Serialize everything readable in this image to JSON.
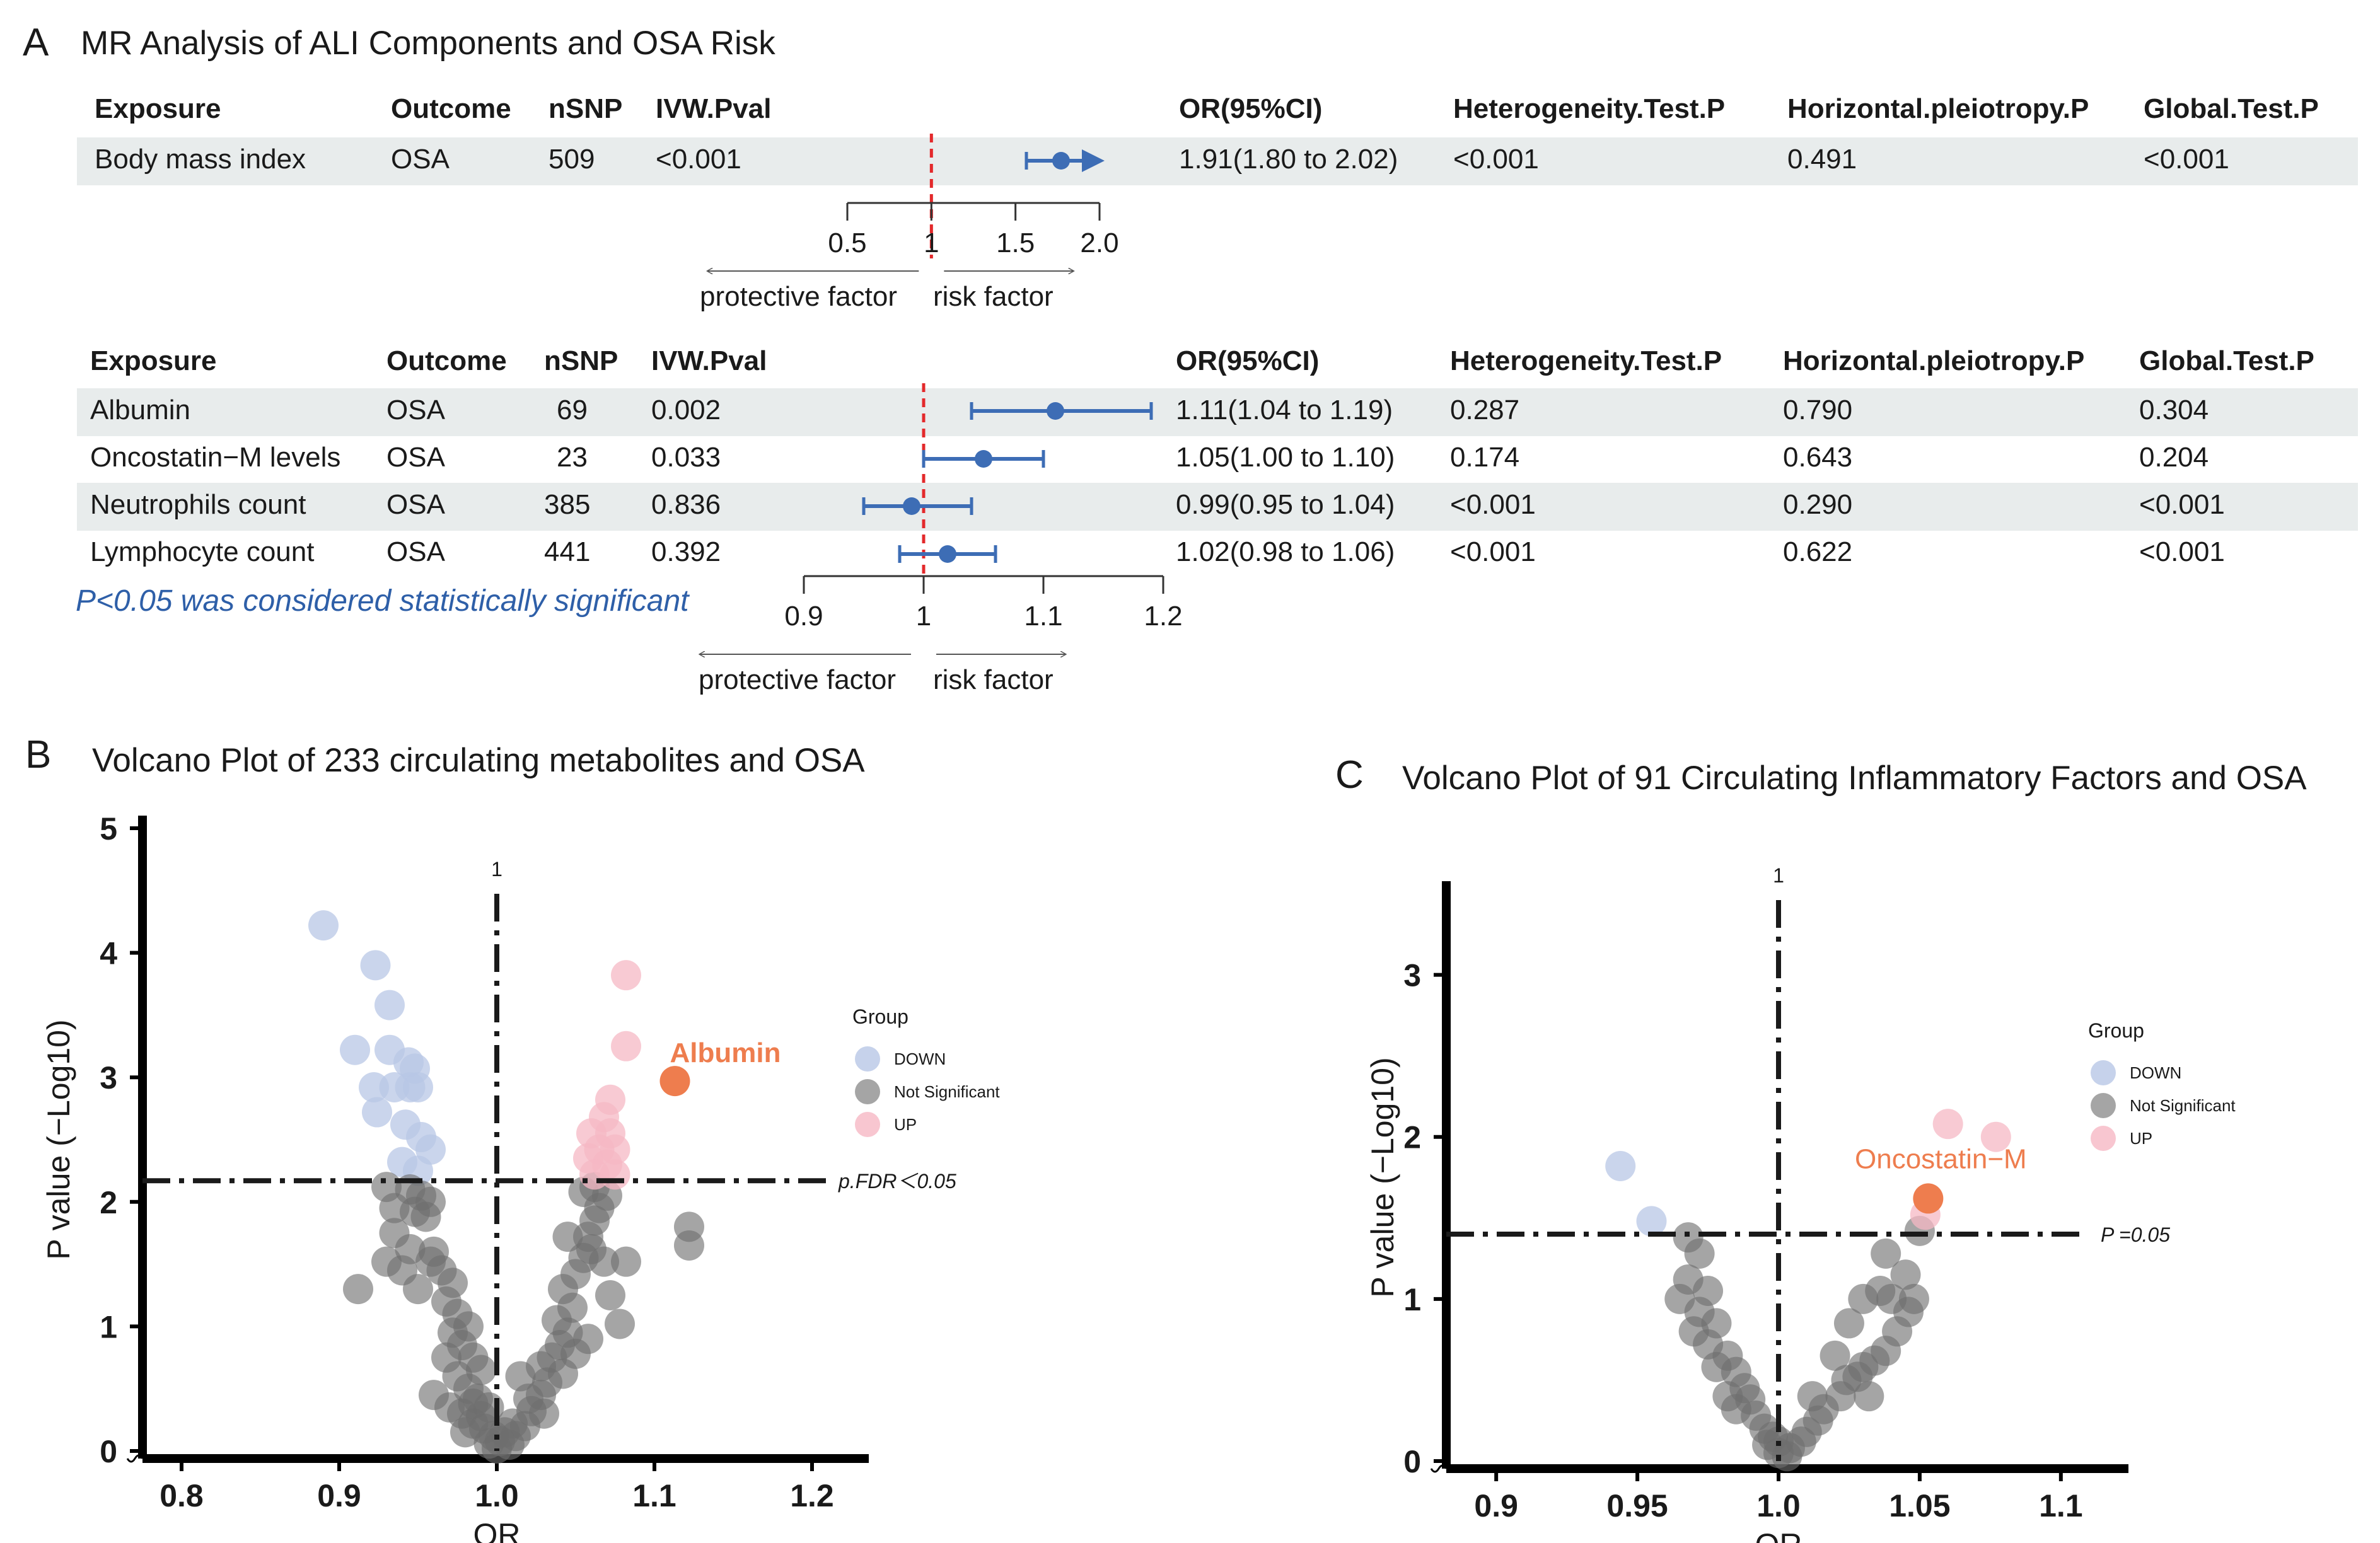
{
  "panel_a": {
    "letter": "A",
    "title": "MR Analysis of ALI Components and OSA Risk",
    "headers": [
      "Exposure",
      "Outcome",
      "nSNP",
      "IVW.Pval",
      "OR(95%CI)",
      "Heterogeneity.Test.P",
      "Horizontal.pleiotropy.P",
      "Global.Test.P"
    ],
    "note": "P<0.05 was considered statistically significant",
    "protective_label": "protective factor",
    "risk_label": "risk factor"
  },
  "chart_data": [
    {
      "type": "forest",
      "id": "bmi",
      "null_value": 1,
      "xlim": [
        0.5,
        2.0
      ],
      "ticks": [
        0.5,
        1,
        1.5,
        2.0
      ],
      "tick_labels": [
        "0.5",
        "1",
        "1.5",
        "2.0"
      ],
      "rows": [
        {
          "exposure": "Body mass index",
          "outcome": "OSA",
          "nsnp": "509",
          "ivw_pval": "<0.001",
          "or": 1.91,
          "lo": 1.8,
          "hi": 2.02,
          "or_text": "1.91(1.80 to 2.02)",
          "heterogeneity": "<0.001",
          "pleiotropy": "0.491",
          "global": "<0.001"
        }
      ]
    },
    {
      "type": "forest",
      "id": "ali",
      "null_value": 1,
      "xlim": [
        0.9,
        1.2
      ],
      "ticks": [
        0.9,
        1.0,
        1.1,
        1.2
      ],
      "tick_labels": [
        "0.9",
        "1",
        "1.1",
        "1.2"
      ],
      "rows": [
        {
          "exposure": "Albumin",
          "outcome": "OSA",
          "nsnp": "69",
          "ivw_pval": "0.002",
          "or": 1.11,
          "lo": 1.04,
          "hi": 1.19,
          "or_text": "1.11(1.04 to 1.19)",
          "heterogeneity": "0.287",
          "pleiotropy": "0.790",
          "global": "0.304"
        },
        {
          "exposure": "Oncostatin−M levels",
          "outcome": "OSA",
          "nsnp": "23",
          "ivw_pval": "0.033",
          "or": 1.05,
          "lo": 1.0,
          "hi": 1.1,
          "or_text": "1.05(1.00 to 1.10)",
          "heterogeneity": "0.174",
          "pleiotropy": "0.643",
          "global": "0.204"
        },
        {
          "exposure": "Neutrophils count",
          "outcome": "OSA",
          "nsnp": "385",
          "ivw_pval": "0.836",
          "or": 0.99,
          "lo": 0.95,
          "hi": 1.04,
          "or_text": "0.99(0.95 to 1.04)",
          "heterogeneity": "<0.001",
          "pleiotropy": "0.290",
          "global": "<0.001"
        },
        {
          "exposure": "Lymphocyte count",
          "outcome": "OSA",
          "nsnp": "441",
          "ivw_pval": "0.392",
          "or": 1.02,
          "lo": 0.98,
          "hi": 1.06,
          "or_text": "1.02(0.98 to 1.06)",
          "heterogeneity": "<0.001",
          "pleiotropy": "0.622",
          "global": "<0.001"
        }
      ]
    },
    {
      "type": "scatter",
      "id": "volcano_b",
      "letter": "B",
      "title": "Volcano Plot of 233 circulating metabolites and OSA",
      "xlabel": "OR",
      "ylabel": "P value (−Log10)",
      "xlim": [
        0.78,
        1.22
      ],
      "ylim": [
        0,
        5
      ],
      "xticks": [
        0.8,
        0.9,
        1.0,
        1.1,
        1.2
      ],
      "xtick_labels": [
        "0.8",
        "0.9",
        "1.0",
        "1.1",
        "1.2"
      ],
      "yticks": [
        0,
        1,
        2,
        3,
        4,
        5
      ],
      "ytick_labels": [
        "0",
        "1",
        "2",
        "3",
        "4",
        "5"
      ],
      "vline": 1.0,
      "vline_label": "1",
      "hline": 2.17,
      "hline_label": "p.FDR＜0.05",
      "highlight": {
        "label": "Albumin",
        "x": 1.113,
        "y": 2.97
      },
      "legend": {
        "title": "Group",
        "items": [
          "DOWN",
          "Not Significant",
          "UP"
        ]
      },
      "series": [
        {
          "name": "DOWN",
          "points": [
            [
              0.89,
              4.22
            ],
            [
              0.923,
              3.9
            ],
            [
              0.932,
              3.58
            ],
            [
              0.91,
              3.22
            ],
            [
              0.932,
              3.22
            ],
            [
              0.944,
              3.12
            ],
            [
              0.948,
              3.07
            ],
            [
              0.922,
              2.92
            ],
            [
              0.935,
              2.92
            ],
            [
              0.945,
              2.92
            ],
            [
              0.95,
              2.92
            ],
            [
              0.924,
              2.72
            ],
            [
              0.942,
              2.62
            ],
            [
              0.952,
              2.52
            ],
            [
              0.958,
              2.42
            ],
            [
              0.94,
              2.32
            ],
            [
              0.95,
              2.25
            ]
          ]
        },
        {
          "name": "Not Significant",
          "points": [
            [
              0.93,
              2.12
            ],
            [
              0.945,
              2.1
            ],
            [
              0.952,
              2.05
            ],
            [
              0.958,
              2.0
            ],
            [
              0.935,
              1.95
            ],
            [
              0.948,
              1.92
            ],
            [
              0.955,
              1.88
            ],
            [
              0.935,
              1.75
            ],
            [
              0.945,
              1.62
            ],
            [
              0.93,
              1.52
            ],
            [
              0.94,
              1.45
            ],
            [
              0.912,
              1.3
            ],
            [
              0.958,
              1.52
            ],
            [
              0.965,
              1.45
            ],
            [
              0.972,
              1.35
            ],
            [
              0.968,
              1.2
            ],
            [
              0.975,
              1.1
            ],
            [
              0.982,
              1.0
            ],
            [
              0.972,
              0.95
            ],
            [
              0.978,
              0.85
            ],
            [
              0.985,
              0.75
            ],
            [
              0.99,
              0.65
            ],
            [
              0.968,
              0.75
            ],
            [
              0.975,
              0.6
            ],
            [
              0.982,
              0.5
            ],
            [
              0.988,
              0.42
            ],
            [
              0.995,
              0.35
            ],
            [
              0.96,
              0.45
            ],
            [
              0.97,
              0.35
            ],
            [
              0.978,
              0.3
            ],
            [
              0.985,
              0.22
            ],
            [
              0.992,
              0.18
            ],
            [
              0.998,
              0.12
            ],
            [
              1.002,
              0.08
            ],
            [
              0.995,
              0.06
            ],
            [
              1.005,
              0.15
            ],
            [
              1.01,
              0.22
            ],
            [
              0.99,
              0.28
            ],
            [
              0.985,
              0.38
            ],
            [
              1.012,
              0.12
            ],
            [
              1.018,
              0.2
            ],
            [
              1.022,
              0.32
            ],
            [
              1.028,
              0.45
            ],
            [
              1.032,
              0.55
            ],
            [
              1.028,
              0.68
            ],
            [
              1.035,
              0.75
            ],
            [
              1.04,
              0.85
            ],
            [
              1.045,
              0.95
            ],
            [
              1.038,
              1.05
            ],
            [
              1.048,
              1.15
            ],
            [
              1.042,
              1.3
            ],
            [
              1.05,
              1.42
            ],
            [
              1.055,
              1.55
            ],
            [
              1.06,
              1.62
            ],
            [
              1.058,
              1.72
            ],
            [
              1.062,
              1.85
            ],
            [
              1.065,
              1.95
            ],
            [
              1.07,
              2.05
            ],
            [
              1.055,
              2.08
            ],
            [
              1.062,
              2.12
            ],
            [
              1.045,
              1.72
            ],
            [
              1.068,
              1.52
            ],
            [
              1.082,
              1.52
            ],
            [
              1.072,
              1.25
            ],
            [
              1.078,
              1.02
            ],
            [
              1.058,
              0.9
            ],
            [
              1.05,
              0.78
            ],
            [
              1.042,
              0.62
            ],
            [
              1.03,
              0.3
            ],
            [
              1.02,
              0.42
            ],
            [
              1.122,
              1.8
            ],
            [
              1.122,
              1.65
            ],
            [
              1.0,
              0.02
            ],
            [
              0.98,
              0.15
            ],
            [
              1.008,
              0.05
            ],
            [
              1.015,
              0.6
            ],
            [
              0.96,
              1.6
            ],
            [
              0.95,
              1.3
            ]
          ]
        },
        {
          "name": "UP",
          "points": [
            [
              1.082,
              3.82
            ],
            [
              1.082,
              3.25
            ],
            [
              1.072,
              2.82
            ],
            [
              1.068,
              2.68
            ],
            [
              1.06,
              2.55
            ],
            [
              1.072,
              2.55
            ],
            [
              1.065,
              2.42
            ],
            [
              1.075,
              2.42
            ],
            [
              1.058,
              2.35
            ],
            [
              1.07,
              2.3
            ],
            [
              1.062,
              2.22
            ],
            [
              1.075,
              2.22
            ]
          ]
        },
        {
          "name": "Highlight",
          "points": [
            [
              1.113,
              2.97
            ]
          ]
        }
      ]
    },
    {
      "type": "scatter",
      "id": "volcano_c",
      "letter": "C",
      "title": "Volcano Plot of 91 Circulating Inflammatory Factors and OSA",
      "xlabel": "OR",
      "ylabel": "P value (−Log10)",
      "xlim": [
        0.885,
        1.115
      ],
      "ylim": [
        0,
        3.5
      ],
      "xticks": [
        0.9,
        0.95,
        1.0,
        1.05,
        1.1
      ],
      "xtick_labels": [
        "0.9",
        "0.95",
        "1.0",
        "1.05",
        "1.1"
      ],
      "yticks": [
        0,
        1,
        2,
        3
      ],
      "ytick_labels": [
        "0",
        "1",
        "2",
        "3"
      ],
      "vline": 1.0,
      "vline_label": "1",
      "hline": 1.4,
      "hline_label": "P =0.05",
      "highlight": {
        "label": "Oncostatin−M",
        "x": 1.053,
        "y": 1.62
      },
      "legend": {
        "title": "Group",
        "items": [
          "DOWN",
          "Not Significant",
          "UP"
        ]
      },
      "series": [
        {
          "name": "DOWN",
          "points": [
            [
              0.944,
              1.82
            ],
            [
              0.955,
              1.48
            ]
          ]
        },
        {
          "name": "Not Significant",
          "points": [
            [
              0.968,
              1.38
            ],
            [
              0.972,
              1.28
            ],
            [
              0.968,
              1.12
            ],
            [
              0.975,
              1.05
            ],
            [
              0.965,
              1.0
            ],
            [
              0.972,
              0.92
            ],
            [
              0.978,
              0.85
            ],
            [
              0.97,
              0.8
            ],
            [
              0.975,
              0.72
            ],
            [
              0.982,
              0.65
            ],
            [
              0.978,
              0.58
            ],
            [
              0.985,
              0.55
            ],
            [
              0.988,
              0.45
            ],
            [
              0.99,
              0.38
            ],
            [
              0.985,
              0.32
            ],
            [
              0.992,
              0.28
            ],
            [
              0.995,
              0.2
            ],
            [
              0.998,
              0.15
            ],
            [
              0.996,
              0.1
            ],
            [
              1.0,
              0.05
            ],
            [
              1.004,
              0.08
            ],
            [
              1.008,
              0.12
            ],
            [
              1.01,
              0.18
            ],
            [
              1.014,
              0.25
            ],
            [
              1.016,
              0.32
            ],
            [
              1.012,
              0.4
            ],
            [
              1.022,
              0.4
            ],
            [
              1.024,
              0.5
            ],
            [
              1.028,
              0.52
            ],
            [
              1.03,
              0.58
            ],
            [
              1.034,
              0.62
            ],
            [
              1.038,
              0.68
            ],
            [
              1.042,
              0.8
            ],
            [
              1.046,
              0.92
            ],
            [
              1.04,
              1.0
            ],
            [
              1.045,
              1.15
            ],
            [
              1.038,
              1.28
            ],
            [
              1.05,
              1.42
            ],
            [
              1.03,
              1.0
            ],
            [
              1.036,
              1.05
            ],
            [
              1.025,
              0.85
            ],
            [
              1.02,
              0.65
            ],
            [
              1.003,
              0.03
            ],
            [
              1.0,
              0.12
            ],
            [
              0.982,
              0.4
            ],
            [
              1.032,
              0.4
            ],
            [
              1.048,
              1.0
            ]
          ]
        },
        {
          "name": "UP",
          "points": [
            [
              1.06,
              2.08
            ],
            [
              1.077,
              2.0
            ],
            [
              1.052,
              1.52
            ]
          ]
        },
        {
          "name": "Highlight",
          "points": [
            [
              1.053,
              1.62
            ]
          ]
        }
      ]
    }
  ],
  "colors": {
    "down": "#b8c7e6",
    "ns": "#6e6e6e",
    "up": "#f6b8c4",
    "highlight": "#ee7d4e",
    "forest": "#3d6db5",
    "null_line": "#e3292b",
    "note": "#2e5fa8"
  }
}
